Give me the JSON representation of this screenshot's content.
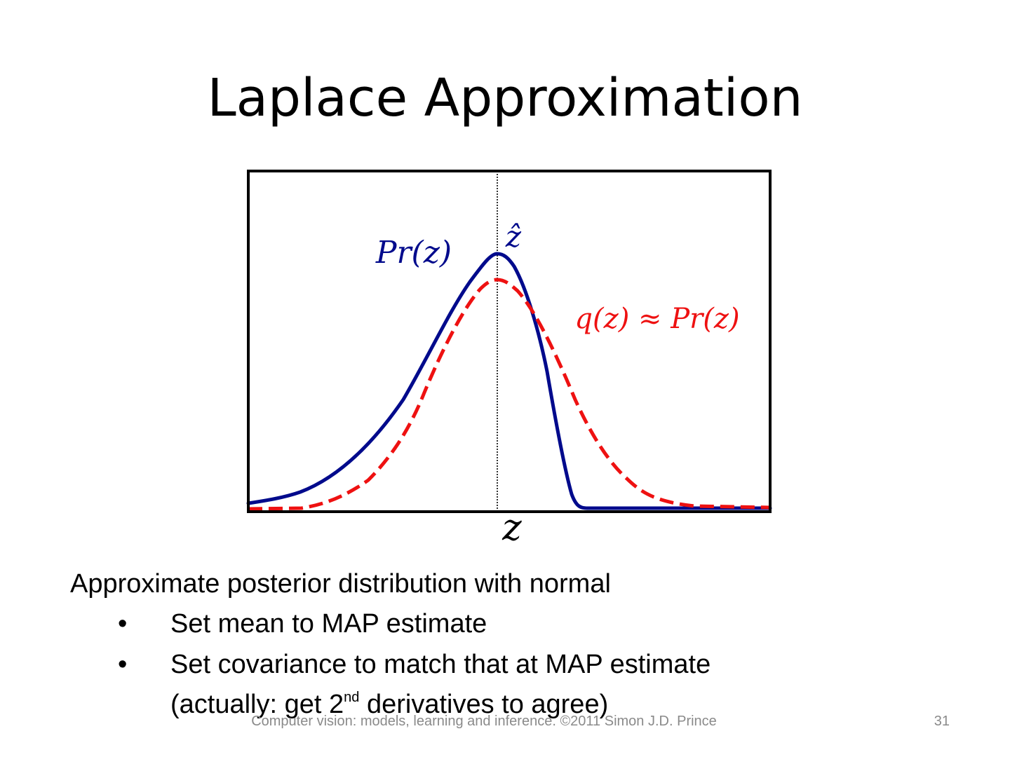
{
  "slide": {
    "title": "Laplace Approximation",
    "lead": "Approximate posterior distribution with normal",
    "bullets": [
      {
        "marker": "•",
        "text": "Set mean to MAP estimate"
      },
      {
        "marker": "•",
        "text": "Set covariance to match that at MAP estimate",
        "continuation_pre": "(actually: get 2",
        "continuation_sup": "nd",
        "continuation_post": " derivatives to agree)"
      }
    ],
    "footer": "Computer vision: models, learning and inference.  ©2011 Simon J.D. Prince",
    "page_number": "31"
  },
  "figure": {
    "labels": {
      "pr": "Pr(z)",
      "zhat": "ẑ",
      "q": "q(z) ≈ Pr(z)",
      "z": "z"
    },
    "colors": {
      "pr": "#000a8c",
      "q": "#ee1111",
      "frame": "#000000"
    }
  }
}
